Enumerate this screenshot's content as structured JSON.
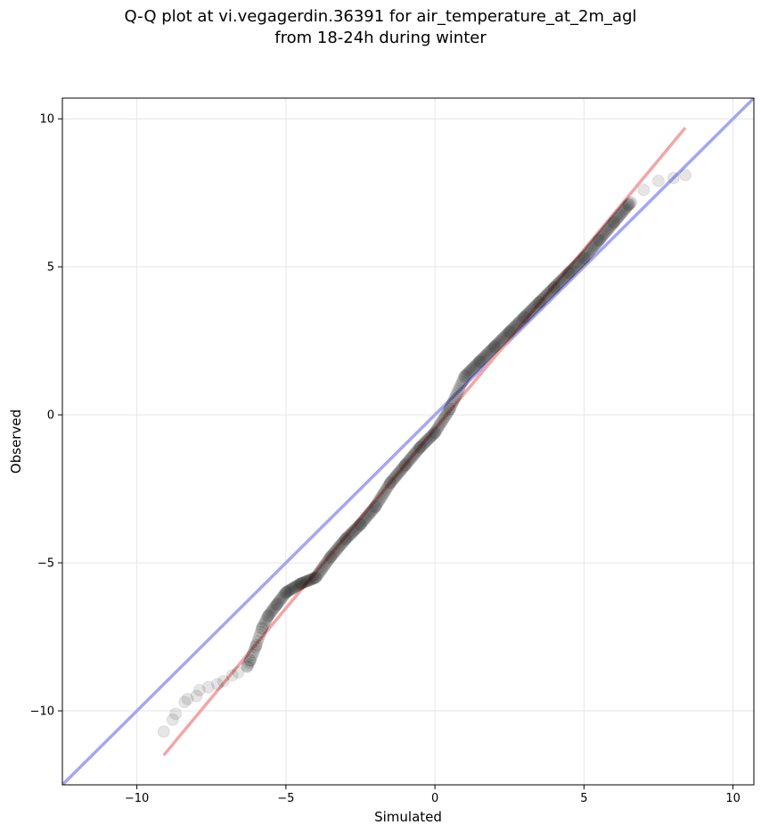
{
  "chart_data": {
    "type": "scatter",
    "title": "Q-Q plot at vi.vegagerdin.36391 for air_temperature_at_2m_agl",
    "subtitle": "from 18-24h during winter",
    "xlabel": "Simulated",
    "ylabel": "Observed",
    "xlim": [
      -12.5,
      10.7
    ],
    "ylim": [
      -12.5,
      10.7
    ],
    "xticks": [
      -10,
      -5,
      0,
      5,
      10
    ],
    "yticks": [
      -10,
      -5,
      0,
      5,
      10
    ],
    "xtick_labels": [
      "−10",
      "−5",
      "0",
      "5",
      "10"
    ],
    "ytick_labels": [
      "−10",
      "−5",
      "0",
      "5",
      "10"
    ],
    "grid": true,
    "reference_lines": [
      {
        "kind": "identity",
        "color": "#a6a6f2",
        "points": [
          [
            -12.5,
            -12.5
          ],
          [
            10.7,
            10.7
          ]
        ]
      },
      {
        "kind": "fit",
        "color": "#f2a6a6",
        "points": [
          [
            -9.1,
            -11.5
          ],
          [
            8.4,
            9.7
          ]
        ]
      }
    ],
    "points_color": "#000000",
    "quantile_curve": [
      [
        -9.1,
        -10.7
      ],
      [
        -8.8,
        -10.3
      ],
      [
        -8.7,
        -10.1
      ],
      [
        -8.4,
        -9.7
      ],
      [
        -8.3,
        -9.6
      ],
      [
        -8.0,
        -9.5
      ],
      [
        -7.9,
        -9.3
      ],
      [
        -7.6,
        -9.2
      ],
      [
        -7.3,
        -9.1
      ],
      [
        -7.1,
        -9.0
      ],
      [
        -6.8,
        -8.8
      ],
      [
        -6.6,
        -8.7
      ],
      [
        -6.3,
        -8.5
      ],
      [
        -6.2,
        -8.3
      ],
      [
        -6.0,
        -7.8
      ],
      [
        -5.8,
        -7.2
      ],
      [
        -5.6,
        -6.8
      ],
      [
        -5.3,
        -6.4
      ],
      [
        -5.0,
        -6.0
      ],
      [
        -4.5,
        -5.7
      ],
      [
        -4.0,
        -5.5
      ],
      [
        -3.5,
        -4.8
      ],
      [
        -3.0,
        -4.2
      ],
      [
        -2.5,
        -3.7
      ],
      [
        -2.0,
        -3.1
      ],
      [
        -1.5,
        -2.3
      ],
      [
        -1.0,
        -1.7
      ],
      [
        -0.5,
        -1.1
      ],
      [
        0.0,
        -0.6
      ],
      [
        0.5,
        0.2
      ],
      [
        1.0,
        1.3
      ],
      [
        1.5,
        1.8
      ],
      [
        2.0,
        2.3
      ],
      [
        2.5,
        2.8
      ],
      [
        3.0,
        3.3
      ],
      [
        3.5,
        3.8
      ],
      [
        4.0,
        4.3
      ],
      [
        4.5,
        4.8
      ],
      [
        5.0,
        5.3
      ],
      [
        5.5,
        5.9
      ],
      [
        6.0,
        6.5
      ],
      [
        6.5,
        7.1
      ],
      [
        7.0,
        7.6
      ],
      [
        7.5,
        7.9
      ],
      [
        8.0,
        8.0
      ],
      [
        8.4,
        8.1
      ]
    ],
    "dense_interior": [
      -6.3,
      6.6
    ]
  }
}
